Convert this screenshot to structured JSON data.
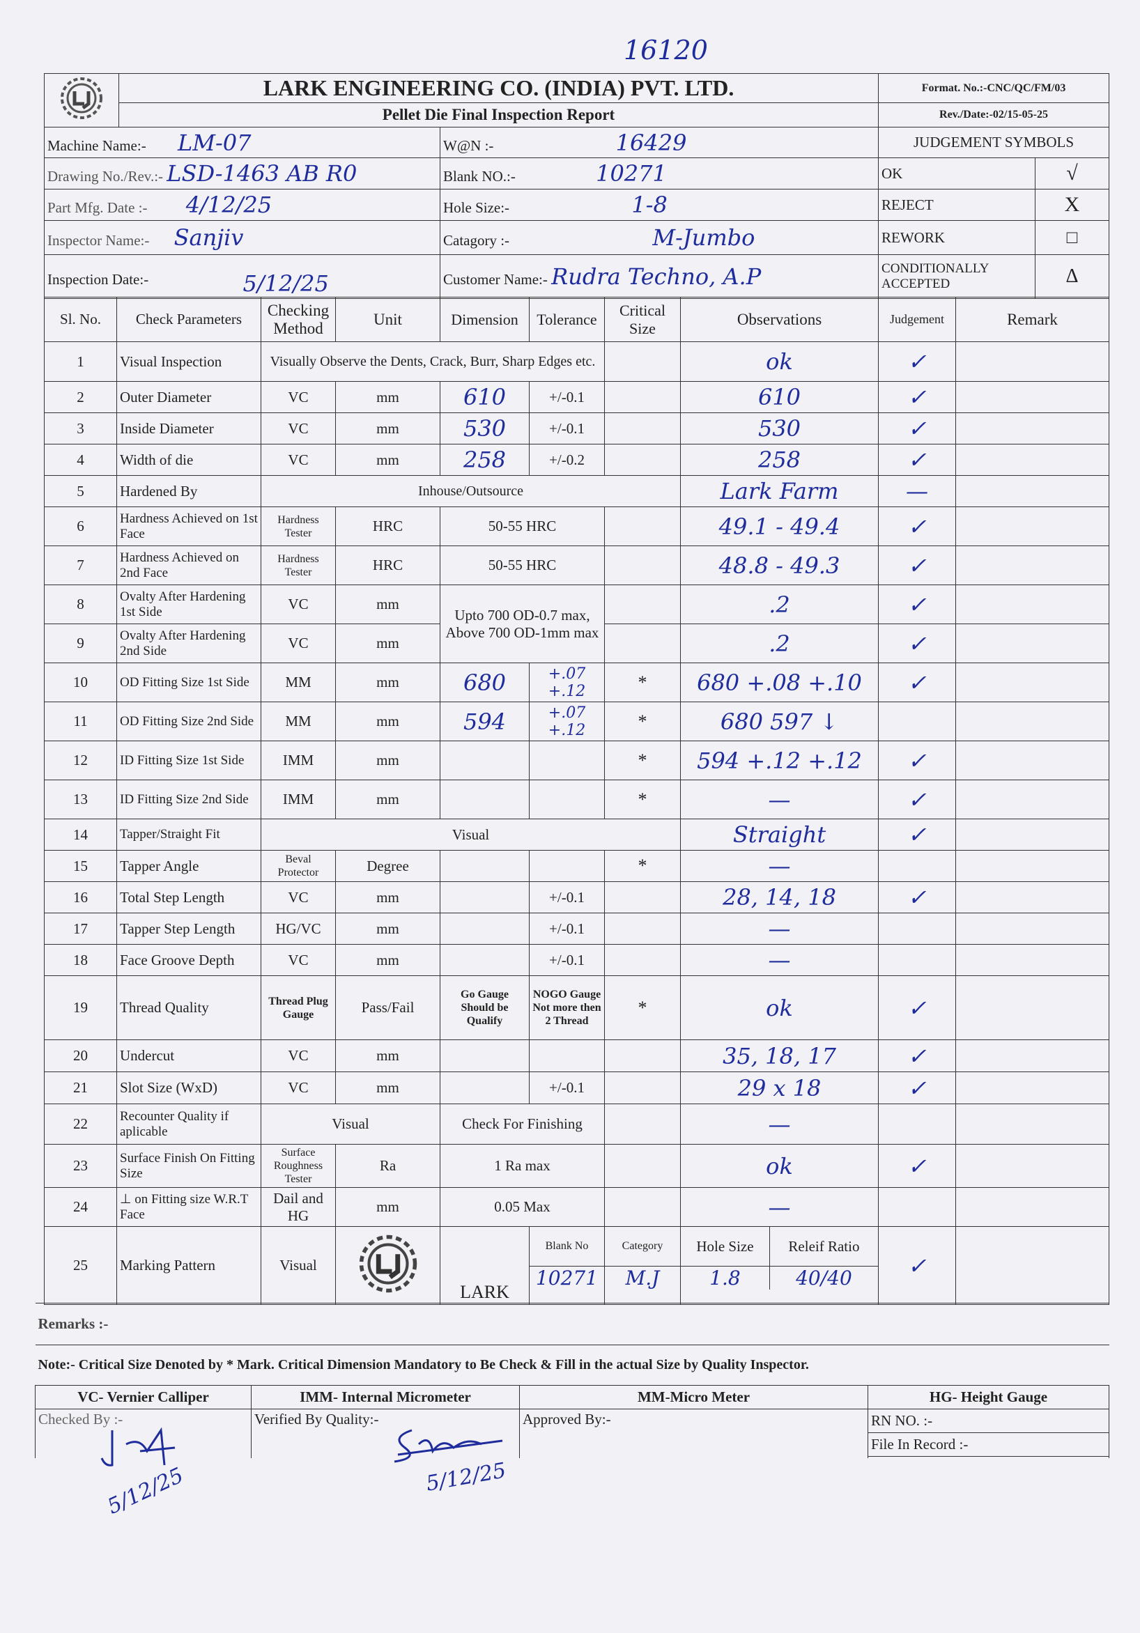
{
  "top_note": "16120",
  "header": {
    "company": "LARK ENGINEERING CO. (INDIA) PVT. LTD.",
    "report_title": "Pellet Die Final Inspection Report",
    "format_no": "Format. No.:-CNC/QC/FM/03",
    "rev_date": "Rev./Date:-02/15-05-25"
  },
  "info": {
    "machine_name": {
      "label": "Machine Name:-",
      "value": "LM-07"
    },
    "drawing_no": {
      "label": "Drawing No./Rev.:-",
      "value": "LSD-1463 AB R0"
    },
    "part_mfg_date": {
      "label": "Part Mfg. Date :-",
      "value": "4/12/25"
    },
    "inspector_name": {
      "label": "Inspector Name:-",
      "value": "Sanjiv"
    },
    "inspection_date": {
      "label": "Inspection Date:-",
      "value": "5/12/25"
    },
    "won": {
      "label": "W@N :-",
      "value": "16429"
    },
    "blank_no": {
      "label": "Blank NO.:-",
      "value": "10271"
    },
    "hole_size": {
      "label": "Hole Size:-",
      "value": "1-8"
    },
    "category": {
      "label": "Catagory :-",
      "value": "M-Jumbo"
    },
    "customer_name": {
      "label": "Customer Name:-",
      "value": "Rudra Techno, A.P"
    }
  },
  "judgement_symbols": {
    "title": "JUDGEMENT SYMBOLS",
    "items": [
      {
        "label": "OK",
        "symbol": "√"
      },
      {
        "label": "REJECT",
        "symbol": "X"
      },
      {
        "label": "REWORK",
        "symbol": "□"
      },
      {
        "label": "CONDITIONALLY ACCEPTED",
        "symbol": "Δ"
      }
    ]
  },
  "columns": {
    "no": "Sl. No.",
    "param": "Check Parameters",
    "method": "Checking Method",
    "unit": "Unit",
    "dimension": "Dimension",
    "tolerance": "Tolerance",
    "critical": "Critical Size",
    "observation": "Observations",
    "judgement": "Judgement",
    "remark": "Remark"
  },
  "rows": [
    {
      "no": "1",
      "param": "Visual Inspection",
      "method": "Visually Observe the Dents, Crack, Burr, Sharp Edges etc.",
      "observation": "ok",
      "judgement": "✓"
    },
    {
      "no": "2",
      "param": "Outer Diameter",
      "method": "VC",
      "unit": "mm",
      "dimension": "610",
      "tolerance": "+/-0.1",
      "observation": "610",
      "judgement": "✓"
    },
    {
      "no": "3",
      "param": "Inside Diameter",
      "method": "VC",
      "unit": "mm",
      "dimension": "530",
      "tolerance": "+/-0.1",
      "observation": "530",
      "judgement": "✓"
    },
    {
      "no": "4",
      "param": "Width of die",
      "method": "VC",
      "unit": "mm",
      "dimension": "258",
      "tolerance": "+/-0.2",
      "observation": "258",
      "judgement": "✓"
    },
    {
      "no": "5",
      "param": "Hardened By",
      "method": "Inhouse/Outsource",
      "observation": "Lark Farm",
      "judgement": "—"
    },
    {
      "no": "6",
      "param": "Hardness Achieved on 1st Face",
      "method": "Hardness Tester",
      "unit": "HRC",
      "dimension": "50-55 HRC",
      "observation": "49.1 - 49.4",
      "judgement": "✓"
    },
    {
      "no": "7",
      "param": "Hardness Achieved on 2nd Face",
      "method": "Hardness Tester",
      "unit": "HRC",
      "dimension": "50-55 HRC",
      "observation": "48.8 - 49.3",
      "judgement": "✓"
    },
    {
      "no": "8",
      "param": "Ovalty After Hardening 1st Side",
      "method": "VC",
      "unit": "mm",
      "dimension": "Upto 700 OD-0.7 max, Above 700 OD-1mm max",
      "observation": ".2",
      "judgement": "✓"
    },
    {
      "no": "9",
      "param": "Ovalty After Hardening 2nd Side",
      "method": "VC",
      "unit": "mm",
      "observation": ".2",
      "judgement": "✓"
    },
    {
      "no": "10",
      "param": "OD Fitting Size 1st Side",
      "method": "MM",
      "unit": "mm",
      "dimension": "680",
      "tolerance": "+.07 +.12",
      "critical": "*",
      "observation": "680 +.08 +.10",
      "judgement": "✓"
    },
    {
      "no": "11",
      "param": "OD Fitting Size 2nd Side",
      "method": "MM",
      "unit": "mm",
      "dimension": "594",
      "tolerance": "+.07 +.12",
      "critical": "*",
      "observation": "680 597 ↓",
      "judgement": ""
    },
    {
      "no": "12",
      "param": "ID Fitting Size 1st Side",
      "method": "IMM",
      "unit": "mm",
      "critical": "*",
      "observation": "594 +.12 +.12",
      "judgement": "✓"
    },
    {
      "no": "13",
      "param": "ID Fitting Size 2nd Side",
      "method": "IMM",
      "unit": "mm",
      "critical": "*",
      "observation": "—",
      "judgement": "✓"
    },
    {
      "no": "14",
      "param": "Tapper/Straight Fit",
      "method": "Visual",
      "observation": "Straight",
      "judgement": "✓"
    },
    {
      "no": "15",
      "param": "Tapper Angle",
      "method": "Beval Protector",
      "unit": "Degree",
      "critical": "*",
      "observation": "—",
      "judgement": ""
    },
    {
      "no": "16",
      "param": "Total Step Length",
      "method": "VC",
      "unit": "mm",
      "tolerance": "+/-0.1",
      "observation": "28, 14, 18",
      "judgement": "✓"
    },
    {
      "no": "17",
      "param": "Tapper Step Length",
      "method": "HG/VC",
      "unit": "mm",
      "tolerance": "+/-0.1",
      "observation": "—",
      "judgement": ""
    },
    {
      "no": "18",
      "param": "Face Groove Depth",
      "method": "VC",
      "unit": "mm",
      "tolerance": "+/-0.1",
      "observation": "—",
      "judgement": ""
    },
    {
      "no": "19",
      "param": "Thread Quality",
      "method": "Thread Plug Gauge",
      "unit": "Pass/Fail",
      "dimension": "Go Gauge Should be Qualify",
      "tolerance": "NOGO Gauge Not more then 2 Thread",
      "critical": "*",
      "observation": "ok",
      "judgement": "✓"
    },
    {
      "no": "20",
      "param": "Undercut",
      "method": "VC",
      "unit": "mm",
      "observation": "35, 18, 17",
      "judgement": "✓"
    },
    {
      "no": "21",
      "param": "Slot Size (WxD)",
      "method": "VC",
      "unit": "mm",
      "tolerance": "+/-0.1",
      "observation": "29 x 18",
      "judgement": "✓"
    },
    {
      "no": "22",
      "param": "Recounter Quality if aplicable",
      "method": "Visual",
      "dimension": "Check For Finishing",
      "observation": "—",
      "judgement": ""
    },
    {
      "no": "23",
      "param": "Surface Finish On Fitting Size",
      "method": "Surface Roughness Tester",
      "unit": "Ra",
      "dimension": "1 Ra max",
      "observation": "ok",
      "judgement": "✓"
    },
    {
      "no": "24",
      "param": "⊥ on Fitting size W.R.T Face",
      "method": "Dail and HG",
      "unit": "mm",
      "dimension": "0.05 Max",
      "observation": "—",
      "judgement": ""
    },
    {
      "no": "25",
      "param": "Marking Pattern",
      "method": "Visual",
      "dimension": "LARK",
      "marking": {
        "blank_no_label": "Blank No",
        "blank_no": "10271",
        "category_label": "Category",
        "category": "M.J",
        "hole_size_label": "Hole Size",
        "hole_size": "1.8",
        "relief_label": "Releif Ratio",
        "relief": "40/40"
      },
      "judgement": "✓"
    }
  ],
  "footer": {
    "remarks_label": "Remarks :-",
    "note": "Note:- Critical Size Denoted by * Mark. Critical Dimension Mandatory to Be Check & Fill in the actual Size by Quality Inspector.",
    "legend": [
      "VC- Vernier Calliper",
      "IMM- Internal Micrometer",
      "MM-Micro Meter",
      "HG- Height Gauge"
    ],
    "checked_by": "Checked By :-",
    "checked_date": "5/12/25",
    "verified_by": "Verified By Quality:-",
    "verified_date": "5/12/25",
    "approved_by": "Approved By:-",
    "rn_no": "RN NO. :-",
    "file_in_record": "File In Record :-"
  }
}
